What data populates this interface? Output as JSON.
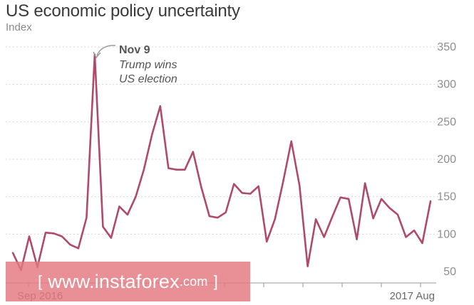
{
  "header": {
    "title": "US economic policy uncertainty",
    "subtitle": "Index"
  },
  "chart_data": {
    "type": "line",
    "title": "US economic policy uncertainty",
    "ylabel": "Index",
    "ylim": [
      40,
      360
    ],
    "yticks": [
      50,
      100,
      150,
      200,
      250,
      300,
      350
    ],
    "grid": "horizontal-dotted",
    "x_tick_labels": [
      "Sep 2016",
      "2017 Aug"
    ],
    "series": [
      {
        "color": "#b04a6a",
        "values": [
          75,
          52,
          97,
          56,
          102,
          101,
          97,
          86,
          81,
          122,
          340,
          110,
          95,
          137,
          126,
          150,
          186,
          233,
          271,
          188,
          186,
          186,
          210,
          163,
          124,
          122,
          129,
          167,
          155,
          154,
          164,
          90,
          120,
          170,
          224,
          165,
          57,
          120,
          96,
          123,
          149,
          147,
          93,
          168,
          121,
          147,
          135,
          126,
          96,
          105,
          88,
          144
        ]
      }
    ],
    "annotation": {
      "index": 10,
      "lines": [
        "Nov 9",
        "Trump wins",
        "US election"
      ]
    }
  },
  "watermark": {
    "bracket_open": "[",
    "text": "www.instaforex",
    "suffix": ".com",
    "bracket_close": "]"
  }
}
